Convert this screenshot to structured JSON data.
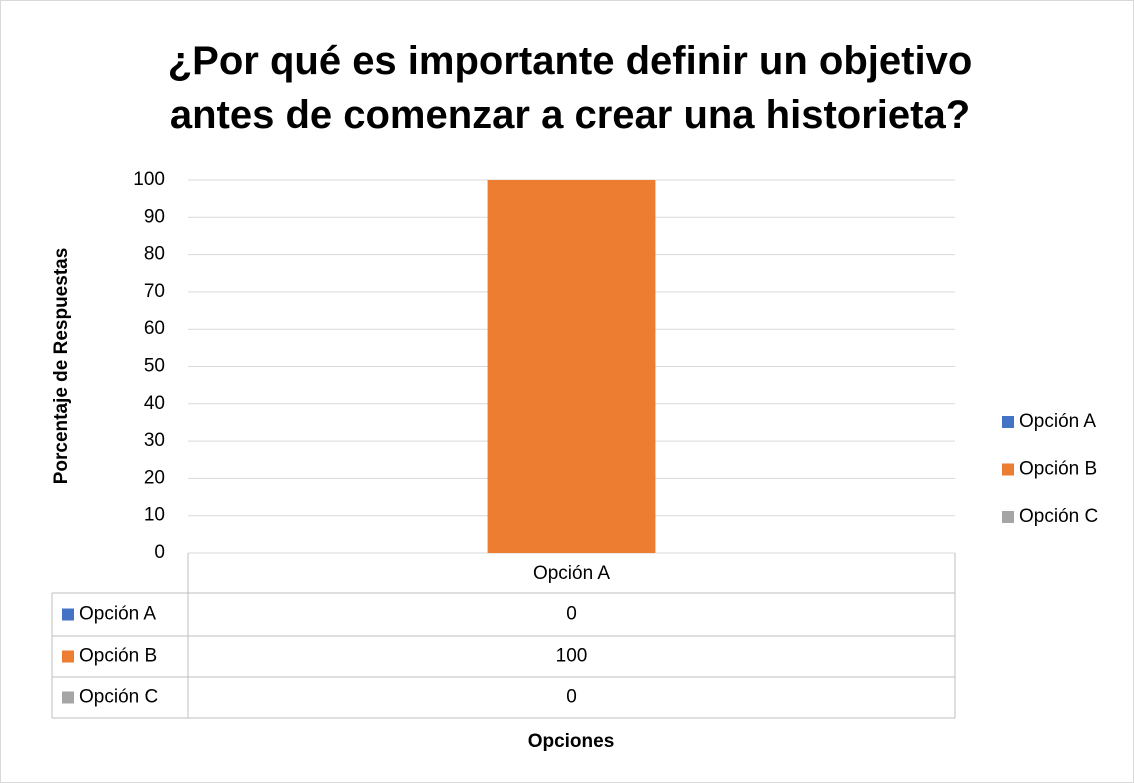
{
  "chart_data": {
    "type": "bar",
    "title": "¿Por qué es importante definir un objetivo antes de comenzar a crear una historieta?",
    "y_axis_label": "Porcentaje de Respuestas",
    "x_axis_label": "Opciones",
    "categories": [
      "Opción A"
    ],
    "series": [
      {
        "name": "Opción A",
        "color": "#4472c4",
        "values": [
          0
        ]
      },
      {
        "name": "Opción B",
        "color": "#ed7d31",
        "values": [
          100
        ]
      },
      {
        "name": "Opción C",
        "color": "#a5a5a5",
        "values": [
          0
        ]
      }
    ],
    "ylim": [
      0,
      100
    ],
    "yticks": [
      0,
      10,
      20,
      30,
      40,
      50,
      60,
      70,
      80,
      90,
      100
    ],
    "grid": true,
    "legend": "right",
    "data_table": true
  }
}
